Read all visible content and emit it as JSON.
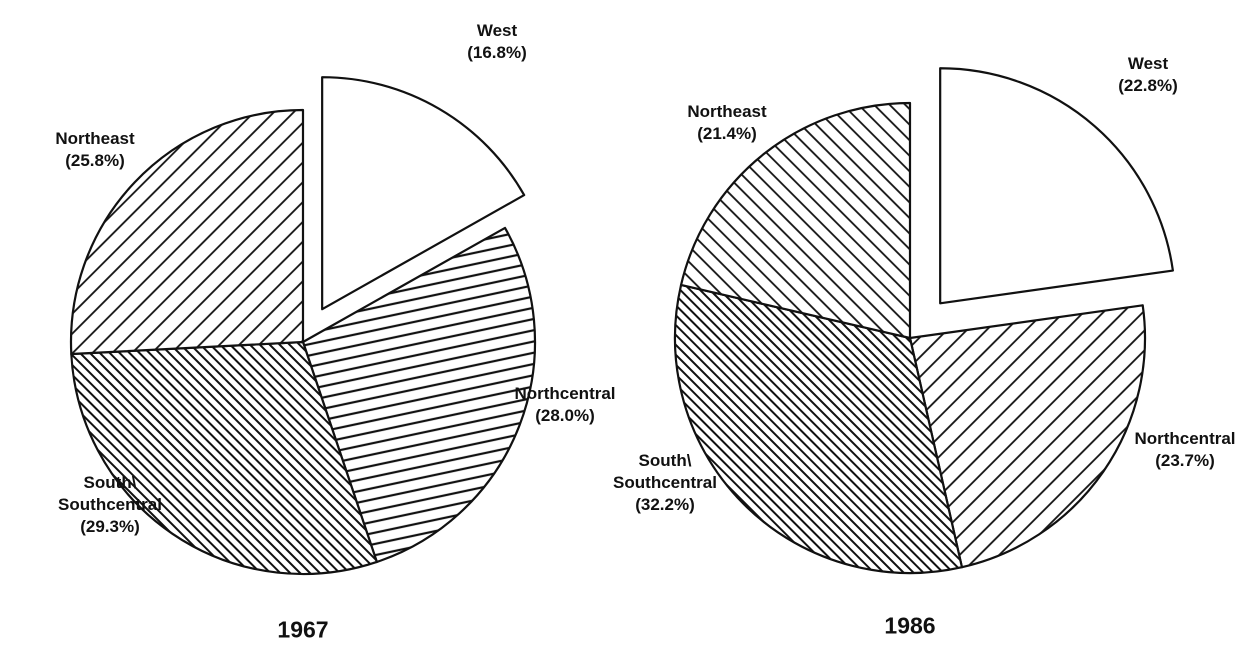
{
  "chart_data": [
    {
      "type": "pie",
      "title": "1967",
      "categories": [
        "West",
        "Northcentral",
        "South\\ Southcentral",
        "Northeast"
      ],
      "values": [
        16.8,
        28.0,
        29.3,
        25.8
      ],
      "value_labels": [
        "(16.8%)",
        "(28.0%)",
        "(29.3%)",
        "(25.8%)"
      ],
      "patterns": [
        "none",
        "horizontal",
        "slash-dense",
        "backslash"
      ],
      "explode": [
        true,
        false,
        false,
        false
      ]
    },
    {
      "type": "pie",
      "title": "1986",
      "categories": [
        "West",
        "Northcentral",
        "South\\ Southcentral",
        "Northeast"
      ],
      "values": [
        22.8,
        23.7,
        32.2,
        21.4
      ],
      "value_labels": [
        "(22.8%)",
        "(23.7%)",
        "(32.2%)",
        "(21.4%)"
      ],
      "patterns": [
        "none",
        "backslash",
        "slash-dense",
        "slash"
      ],
      "explode": [
        true,
        false,
        false,
        false
      ]
    }
  ]
}
